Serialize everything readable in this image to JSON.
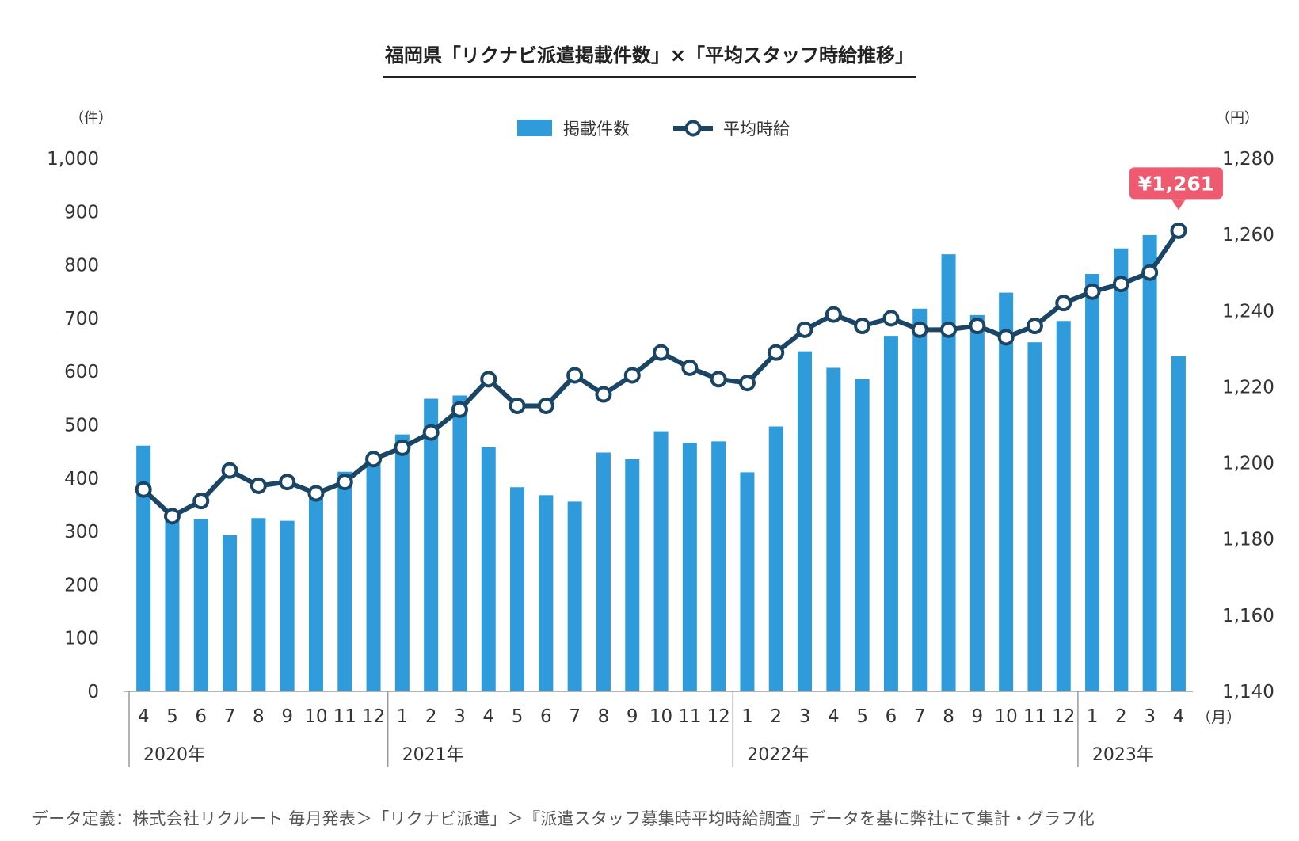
{
  "title": "福岡県「リクナビ派遣掲載件数」×「平均スタッフ時給推移」",
  "footnote": "データ定義：株式会社リクルート 毎月発表＞「リクナビ派遣」＞『派遣スタッフ募集時平均時給調査』データを基に弊社にて集計・グラフ化",
  "colors": {
    "bar": "#2f9bda",
    "line": "#1a4565",
    "callout": "#ee5a6f",
    "axis": "#999999",
    "text": "#333333"
  },
  "chart_data": {
    "type": "bar+line",
    "left_axis_unit": "（件）",
    "right_axis_unit": "（円）",
    "x_unit": "（月）",
    "left_ylim": [
      0,
      1000
    ],
    "left_ticks": [
      0,
      100,
      200,
      300,
      400,
      500,
      600,
      700,
      800,
      900,
      1000
    ],
    "left_tick_labels": [
      "0",
      "100",
      "200",
      "300",
      "400",
      "500",
      "600",
      "700",
      "800",
      "900",
      "1,000"
    ],
    "right_ylim": [
      1140,
      1280
    ],
    "right_ticks": [
      1140,
      1160,
      1180,
      1200,
      1220,
      1240,
      1260,
      1280
    ],
    "right_tick_labels": [
      "1,140",
      "1,160",
      "1,180",
      "1,200",
      "1,220",
      "1,240",
      "1,260",
      "1,280"
    ],
    "months": [
      "4",
      "5",
      "6",
      "7",
      "8",
      "9",
      "10",
      "11",
      "12",
      "1",
      "2",
      "3",
      "4",
      "5",
      "6",
      "7",
      "8",
      "9",
      "10",
      "11",
      "12",
      "1",
      "2",
      "3",
      "4",
      "5",
      "6",
      "7",
      "8",
      "9",
      "10",
      "11",
      "12",
      "1",
      "2",
      "3",
      "4"
    ],
    "years": [
      {
        "label": "2020年",
        "start": 0,
        "end": 8
      },
      {
        "label": "2021年",
        "start": 9,
        "end": 20
      },
      {
        "label": "2022年",
        "start": 21,
        "end": 32
      },
      {
        "label": "2023年",
        "start": 33,
        "end": 36
      }
    ],
    "legend": {
      "bar_label": "掲載件数",
      "line_label": "平均時給"
    },
    "series": [
      {
        "name": "掲載件数",
        "axis": "left",
        "type": "bar",
        "values": [
          461,
          332,
          323,
          293,
          325,
          320,
          368,
          412,
          432,
          482,
          549,
          555,
          458,
          383,
          368,
          356,
          448,
          436,
          488,
          466,
          469,
          411,
          497,
          638,
          607,
          586,
          667,
          718,
          820,
          706,
          748,
          655,
          695,
          783,
          831,
          856,
          629
        ]
      },
      {
        "name": "平均時給",
        "axis": "right",
        "type": "line",
        "values": [
          1193,
          1186,
          1190,
          1198,
          1194,
          1195,
          1192,
          1195,
          1201,
          1204,
          1208,
          1214,
          1222,
          1215,
          1215,
          1223,
          1218,
          1223,
          1229,
          1225,
          1222,
          1221,
          1229,
          1235,
          1239,
          1236,
          1238,
          1235,
          1235,
          1236,
          1233,
          1236,
          1242,
          1245,
          1247,
          1250,
          1261
        ]
      }
    ],
    "annotation": {
      "text": "¥1,261",
      "index": 36
    }
  }
}
